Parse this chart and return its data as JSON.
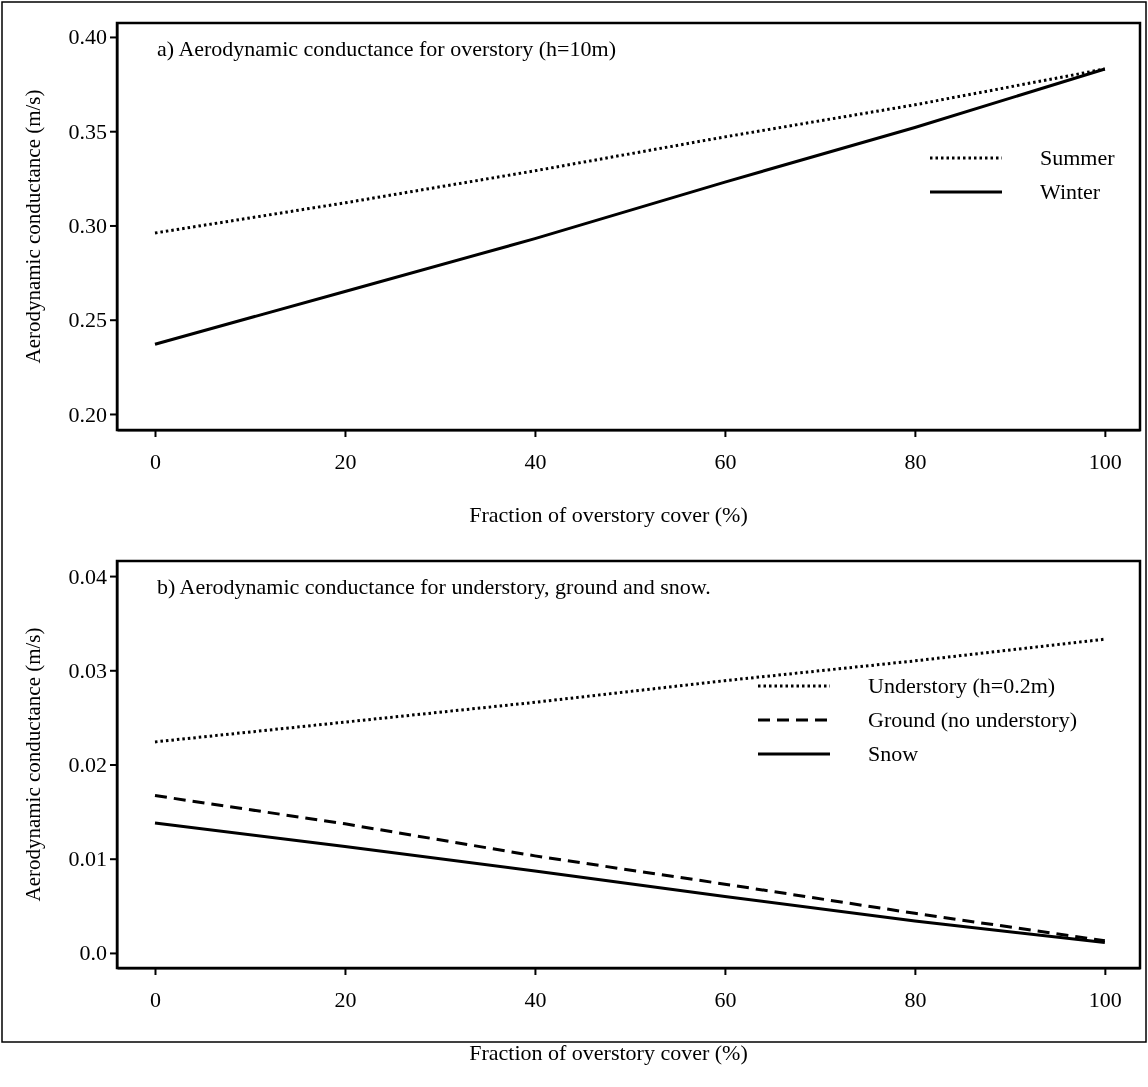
{
  "chart_data": [
    {
      "type": "line",
      "title": "a) Aerodynamic conductance for overstory (h=10m)",
      "xlabel": "Fraction of overstory cover (%)",
      "ylabel": "Aerodynamic conductance (m/s)",
      "x": [
        0,
        20,
        40,
        60,
        80,
        100
      ],
      "xlim": [
        -4,
        103.7
      ],
      "xticks": [
        0,
        20,
        40,
        60,
        80,
        100
      ],
      "ylim": [
        0.1915,
        0.4074
      ],
      "yticks": [
        {
          "value": 0.2,
          "label": "0.20"
        },
        {
          "value": 0.25,
          "label": "0.25"
        },
        {
          "value": 0.3,
          "label": "0.30"
        },
        {
          "value": 0.35,
          "label": "0.35"
        },
        {
          "value": 0.4,
          "label": "0.40"
        }
      ],
      "legend": "right",
      "grid": false,
      "series": [
        {
          "name": "Summer",
          "color": "#000000",
          "line_style": "dotted",
          "values": [
            0.296,
            0.312,
            0.329,
            0.347,
            0.364,
            0.383
          ]
        },
        {
          "name": "Winter",
          "color": "#000000",
          "line_style": "solid",
          "values": [
            0.237,
            0.265,
            0.293,
            0.323,
            0.352,
            0.383
          ]
        }
      ]
    },
    {
      "type": "line",
      "title": "b) Aerodynamic conductance for understory, ground and snow.",
      "xlabel": "Fraction of overstory cover (%)",
      "ylabel": "Aerodynamic conductance (m/s)",
      "x": [
        0,
        20,
        40,
        60,
        80,
        100
      ],
      "xlim": [
        -4,
        103.7
      ],
      "xticks": [
        0,
        20,
        40,
        60,
        80,
        100
      ],
      "ylim": [
        -0.0016,
        0.0416
      ],
      "yticks": [
        {
          "value": 0,
          "label": "0.0"
        },
        {
          "value": 0.01,
          "label": "0.01"
        },
        {
          "value": 0.02,
          "label": "0.02"
        },
        {
          "value": 0.03,
          "label": "0.03"
        },
        {
          "value": 0.04,
          "label": "0.04"
        }
      ],
      "legend": "right",
      "grid": false,
      "series": [
        {
          "name": "Understory (h=0.2m)",
          "color": "#000000",
          "line_style": "dotted",
          "values": [
            0.0224,
            0.0245,
            0.0266,
            0.0289,
            0.031,
            0.0333
          ]
        },
        {
          "name": "Ground (no understory)",
          "color": "#000000",
          "line_style": "dashed",
          "values": [
            0.0167,
            0.0137,
            0.0103,
            0.0073,
            0.0042,
            0.0013
          ]
        },
        {
          "name": "Snow",
          "color": "#000000",
          "line_style": "solid",
          "values": [
            0.0138,
            0.0113,
            0.0087,
            0.006,
            0.0034,
            0.0011
          ]
        }
      ]
    }
  ]
}
